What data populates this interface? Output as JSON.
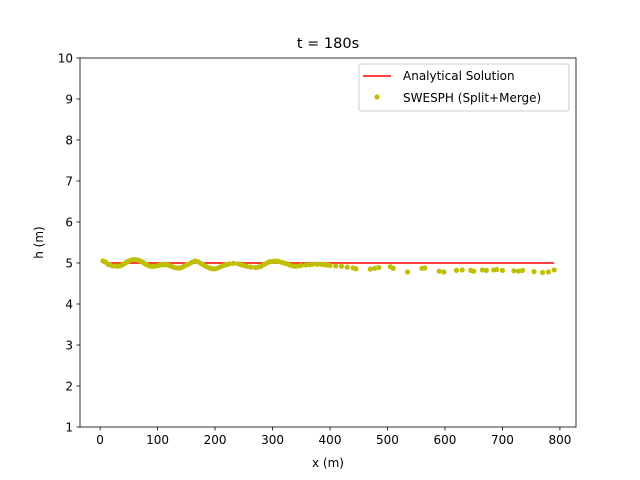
{
  "chart_data": {
    "type": "line",
    "title": "t = 180s",
    "xlabel": "x (m)",
    "ylabel": "h (m)",
    "xlim": [
      -35,
      828
    ],
    "ylim": [
      1,
      10
    ],
    "xticks": [
      0,
      100,
      200,
      300,
      400,
      500,
      600,
      700,
      800
    ],
    "yticks": [
      1,
      2,
      3,
      4,
      5,
      6,
      7,
      8,
      9,
      10
    ],
    "grid": false,
    "legend_position": "top-right",
    "series": [
      {
        "name": "Analytical Solution",
        "kind": "line",
        "color": "#ff0000",
        "x": [
          5,
          790
        ],
        "y": [
          5.0,
          5.0
        ]
      },
      {
        "name": "SWESPH (Split+Merge)",
        "kind": "scatter",
        "color": "#bfbf00",
        "x": [
          5,
          10,
          14,
          18,
          22,
          26,
          30,
          34,
          38,
          42,
          46,
          50,
          54,
          58,
          62,
          66,
          70,
          74,
          78,
          82,
          86,
          90,
          94,
          98,
          102,
          106,
          110,
          114,
          118,
          122,
          126,
          130,
          134,
          138,
          142,
          146,
          150,
          155,
          160,
          165,
          170,
          175,
          180,
          185,
          190,
          195,
          200,
          205,
          210,
          215,
          220,
          225,
          232,
          240,
          245,
          250,
          255,
          262,
          270,
          275,
          280,
          285,
          290,
          295,
          300,
          305,
          310,
          315,
          320,
          325,
          330,
          335,
          340,
          345,
          350,
          358,
          365,
          370,
          378,
          385,
          390,
          395,
          400,
          410,
          420,
          430,
          440,
          445,
          470,
          478,
          485,
          505,
          510,
          535,
          560,
          565,
          590,
          598,
          620,
          630,
          645,
          650,
          665,
          672,
          685,
          690,
          700,
          720,
          728,
          735,
          755,
          770,
          780,
          790
        ],
        "y": [
          5.05,
          5.02,
          4.97,
          4.95,
          4.93,
          4.93,
          4.92,
          4.93,
          4.95,
          4.98,
          5.02,
          5.05,
          5.07,
          5.08,
          5.08,
          5.07,
          5.05,
          5.02,
          4.98,
          4.95,
          4.93,
          4.92,
          4.92,
          4.93,
          4.94,
          4.95,
          4.96,
          4.96,
          4.95,
          4.93,
          4.91,
          4.89,
          4.88,
          4.88,
          4.89,
          4.92,
          4.95,
          4.98,
          5.02,
          5.05,
          5.03,
          4.99,
          4.95,
          4.91,
          4.88,
          4.86,
          4.86,
          4.88,
          4.91,
          4.94,
          4.96,
          4.98,
          4.99,
          4.98,
          4.96,
          4.94,
          4.92,
          4.9,
          4.89,
          4.9,
          4.92,
          4.96,
          5.0,
          5.03,
          5.04,
          5.05,
          5.04,
          5.02,
          5.0,
          4.98,
          4.95,
          4.93,
          4.92,
          4.93,
          4.94,
          4.95,
          4.96,
          4.97,
          4.97,
          4.97,
          4.96,
          4.95,
          4.94,
          4.93,
          4.92,
          4.9,
          4.88,
          4.86,
          4.85,
          4.87,
          4.89,
          4.91,
          4.87,
          4.78,
          4.87,
          4.88,
          4.8,
          4.78,
          4.82,
          4.83,
          4.82,
          4.8,
          4.83,
          4.82,
          4.83,
          4.84,
          4.82,
          4.81,
          4.8,
          4.82,
          4.79,
          4.77,
          4.78,
          4.83
        ]
      }
    ]
  }
}
